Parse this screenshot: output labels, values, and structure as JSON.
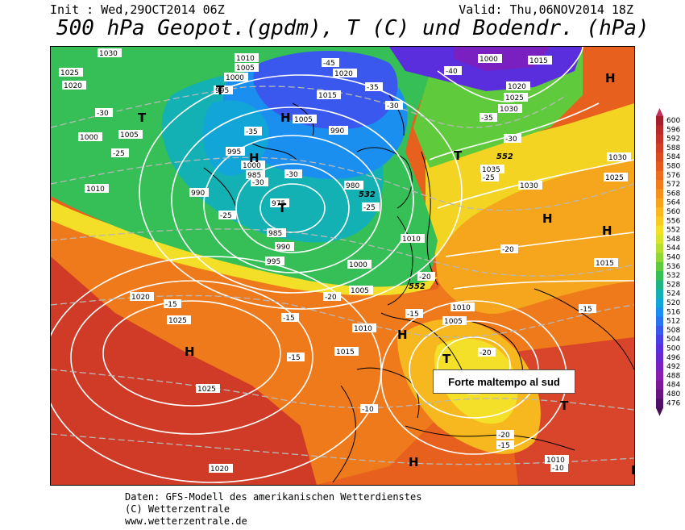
{
  "header": {
    "init": "Init : Wed,29OCT2014 06Z",
    "valid": "Valid: Thu,06NOV2014 18Z",
    "title": "500 hPa Geopot.(gpdm), T (C) und Bodendr. (hPa)"
  },
  "annotation": "Forte maltempo al sud",
  "footer": {
    "line1": "Daten: GFS-Modell des amerikanischen Wetterdienstes",
    "line2": "(C) Wetterzentrale",
    "line3": "www.wetterzentrale.de"
  },
  "legend": {
    "labels": [
      "600",
      "596",
      "592",
      "588",
      "584",
      "580",
      "576",
      "572",
      "568",
      "564",
      "560",
      "556",
      "552",
      "548",
      "544",
      "540",
      "536",
      "532",
      "528",
      "524",
      "520",
      "516",
      "512",
      "508",
      "504",
      "500",
      "496",
      "492",
      "488",
      "484",
      "480",
      "476"
    ],
    "colors": [
      "#a31f2e",
      "#b82a2a",
      "#c8312a",
      "#d23d26",
      "#dc4a22",
      "#e55a1e",
      "#ec6b1c",
      "#f07d1a",
      "#f3911a",
      "#f6a41c",
      "#f8b81e",
      "#f9cb22",
      "#f4e028",
      "#d9e52c",
      "#b6df30",
      "#8fd735",
      "#5fcb3c",
      "#36bf56",
      "#1fb583",
      "#14b1b4",
      "#12a6d8",
      "#1a8ff0",
      "#2a74f2",
      "#3a58ee",
      "#4a3ee6",
      "#5a2edc",
      "#6a26cf",
      "#7a20c0",
      "#8a1cb0",
      "#7a1898",
      "#661480",
      "#501068"
    ],
    "triangle_top": "#c0305a",
    "triangle_bottom": "#4a0c5a"
  },
  "map": {
    "pressure_labels": [
      "1030",
      "1010",
      "1005",
      "995",
      "1000",
      "1020",
      "1025",
      "1020",
      "1005",
      "1000",
      "1010",
      "1015",
      "1005",
      "1000",
      "1015",
      "1020",
      "1025",
      "1030",
      "1035",
      "1030",
      "1025",
      "1030",
      "1000",
      "995",
      "990",
      "980",
      "985",
      "975",
      "990",
      "985",
      "990",
      "995",
      "1000",
      "1005",
      "1010",
      "1020",
      "1025",
      "1025",
      "1015",
      "1010",
      "1005",
      "1010",
      "1020",
      "1010",
      "1015"
    ],
    "temp_labels": [
      "-45",
      "-35",
      "-30",
      "-40",
      "-35",
      "-30",
      "-30",
      "-25",
      "-35",
      "-30",
      "-30",
      "-25",
      "-25",
      "-20",
      "-20",
      "-15",
      "-15",
      "-15",
      "-15",
      "-10",
      "-20",
      "-15",
      "-10",
      "-15",
      "-20",
      "-20",
      "-25"
    ],
    "highs_lows": [
      "H",
      "H",
      "H",
      "T",
      "T",
      "H",
      "H",
      "H",
      "H",
      "H",
      "T",
      "H",
      "T",
      "T",
      "T"
    ],
    "geopot_labels": [
      "552",
      "552",
      "532"
    ]
  }
}
